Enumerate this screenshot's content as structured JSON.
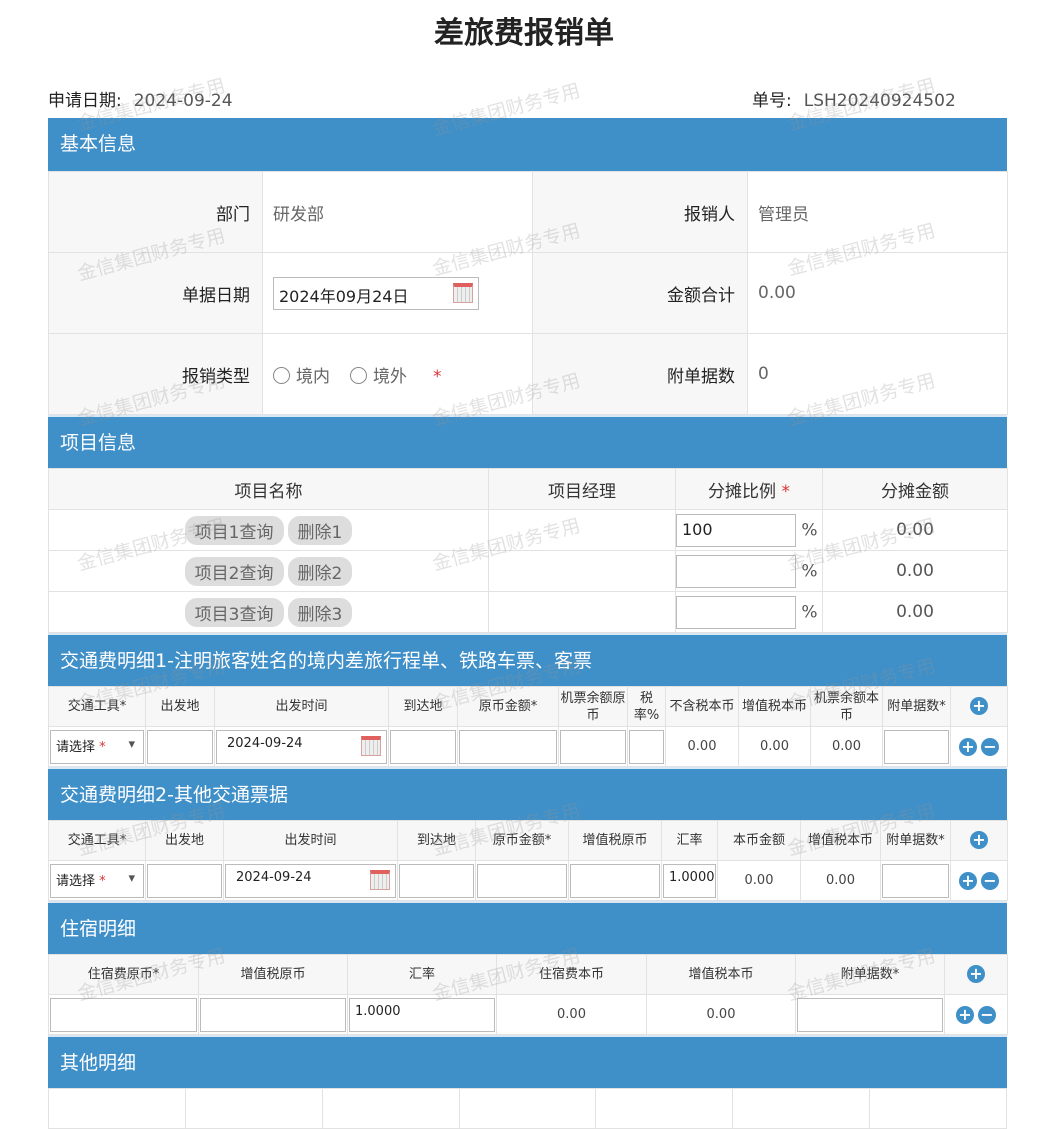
{
  "title": "差旅费报销单",
  "apply_date_label": "申请日期:",
  "apply_date": "2024-09-24",
  "doc_no_label": "单号:",
  "doc_no": "LSH20240924502",
  "watermark": "金信集团财务专用",
  "basic": {
    "header": "基本信息",
    "dept_label": "部门",
    "dept": "研发部",
    "claimant_label": "报销人",
    "claimant": "管理员",
    "date_label": "单据日期",
    "date": "2024年09月24日",
    "total_label": "金额合计",
    "total": "0.00",
    "type_label": "报销类型",
    "type_options": [
      "境内",
      "境外"
    ],
    "attach_label": "附单据数",
    "attach": "0"
  },
  "project": {
    "header": "项目信息",
    "columns": [
      "项目名称",
      "项目经理",
      "分摊比例",
      "分摊金额"
    ],
    "rows": [
      {
        "query": "项目1查询",
        "del": "删除1",
        "ratio": "100",
        "amount": "0.00"
      },
      {
        "query": "项目2查询",
        "del": "删除2",
        "ratio": "",
        "amount": "0.00"
      },
      {
        "query": "项目3查询",
        "del": "删除3",
        "ratio": "",
        "amount": "0.00"
      }
    ],
    "percent": "%"
  },
  "sections": [
    {
      "id": "transport1",
      "header": "交通费明细1-注明旅客姓名的境内差旅行程单、铁路车票、客票",
      "widths": [
        97,
        69,
        174,
        69,
        101,
        69,
        38,
        73,
        72,
        72,
        68,
        57
      ],
      "columns": [
        "交通工具*",
        "出发地",
        "出发时间",
        "到达地",
        "原币金额*",
        "机票余额原币",
        "税率%",
        "不含税本币",
        "增值税本币",
        "机票余额本币",
        "附单据数*",
        ""
      ],
      "row": [
        {
          "t": "sel",
          "v": "请选择"
        },
        {
          "t": "in",
          "v": ""
        },
        {
          "t": "date",
          "v": "2024-09-24"
        },
        {
          "t": "in",
          "v": ""
        },
        {
          "t": "in",
          "v": ""
        },
        {
          "t": "in",
          "v": ""
        },
        {
          "t": "in",
          "v": ""
        },
        {
          "t": "txt",
          "v": "0.00"
        },
        {
          "t": "txt",
          "v": "0.00"
        },
        {
          "t": "txt",
          "v": "0.00"
        },
        {
          "t": "in",
          "v": ""
        },
        {
          "t": "pm"
        }
      ]
    },
    {
      "id": "transport2",
      "header": "交通费明细2-其他交通票据",
      "widths": [
        97,
        78,
        174,
        78,
        93,
        93,
        56,
        83,
        80,
        70,
        57
      ],
      "columns": [
        "交通工具*",
        "出发地",
        "出发时间",
        "到达地",
        "原币金额*",
        "增值税原币",
        "汇率",
        "本币金额",
        "增值税本币",
        "附单据数*",
        ""
      ],
      "row": [
        {
          "t": "sel",
          "v": "请选择"
        },
        {
          "t": "in",
          "v": ""
        },
        {
          "t": "date",
          "v": "2024-09-24"
        },
        {
          "t": "in",
          "v": ""
        },
        {
          "t": "in",
          "v": ""
        },
        {
          "t": "in",
          "v": ""
        },
        {
          "t": "in",
          "v": "1.0000"
        },
        {
          "t": "txt",
          "v": "0.00"
        },
        {
          "t": "txt",
          "v": "0.00"
        },
        {
          "t": "in",
          "v": ""
        },
        {
          "t": "pm"
        }
      ]
    },
    {
      "id": "lodging",
      "header": "住宿明细",
      "widths": [
        150,
        149,
        149,
        150,
        149,
        149,
        63
      ],
      "columns": [
        "住宿费原币*",
        "增值税原币",
        "汇率",
        "住宿费本币",
        "增值税本币",
        "附单据数*",
        ""
      ],
      "row": [
        {
          "t": "in",
          "v": ""
        },
        {
          "t": "in",
          "v": ""
        },
        {
          "t": "in",
          "v": "1.0000"
        },
        {
          "t": "txt",
          "v": "0.00"
        },
        {
          "t": "txt",
          "v": "0.00"
        },
        {
          "t": "in",
          "v": ""
        },
        {
          "t": "pm"
        }
      ]
    },
    {
      "id": "other",
      "header": "其他明细",
      "widths": [],
      "columns": [],
      "row": []
    }
  ],
  "colors": {
    "accent": "#3f8fc8",
    "required": "#d33"
  }
}
